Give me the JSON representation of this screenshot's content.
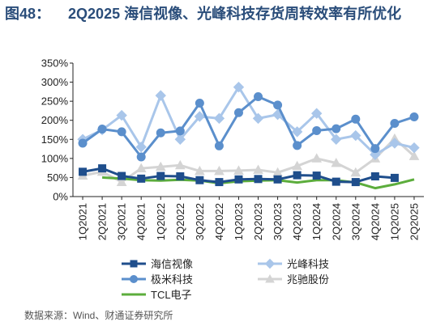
{
  "title": {
    "label": "图48：",
    "text": "2Q2025 海信视像、光峰科技存货周转效率有所优化"
  },
  "source": "数据来源：Wind、财通证券研究所",
  "chart_data": {
    "type": "line",
    "categories": [
      "1Q2021",
      "2Q2021",
      "3Q2021",
      "4Q2021",
      "1Q2022",
      "2Q2022",
      "3Q2022",
      "4Q2022",
      "1Q2023",
      "2Q2023",
      "3Q2023",
      "4Q2023",
      "1Q2024",
      "2Q2024",
      "3Q2024",
      "4Q2024",
      "1Q2025",
      "2Q2025"
    ],
    "ylim": [
      0,
      350
    ],
    "yticks": [
      "0%",
      "50%",
      "100%",
      "150%",
      "200%",
      "250%",
      "300%",
      "350%"
    ],
    "ytick_values": [
      0,
      50,
      100,
      150,
      200,
      250,
      300,
      350
    ],
    "grid": false,
    "legend_position": "bottom",
    "series": [
      {
        "name": "海信视像",
        "color": "#1f4e8c",
        "marker": "square",
        "values": [
          65,
          74,
          54,
          47,
          54,
          53,
          43,
          38,
          45,
          46,
          45,
          56,
          55,
          39,
          38,
          53,
          49,
          null
        ]
      },
      {
        "name": "光峰科技",
        "color": "#a9c6ea",
        "marker": "diamond",
        "values": [
          150,
          175,
          213,
          130,
          265,
          150,
          210,
          205,
          287,
          205,
          215,
          170,
          218,
          150,
          160,
          110,
          140,
          128
        ]
      },
      {
        "name": "极米科技",
        "color": "#5b8fcc",
        "marker": "circle",
        "values": [
          140,
          177,
          170,
          104,
          167,
          172,
          245,
          133,
          220,
          262,
          240,
          134,
          173,
          178,
          203,
          126,
          192,
          209
        ]
      },
      {
        "name": "兆驰股份",
        "color": "#d4d4d4",
        "marker": "triangle",
        "values": [
          55,
          65,
          38,
          74,
          78,
          82,
          67,
          67,
          68,
          70,
          63,
          80,
          100,
          88,
          63,
          100,
          152,
          106
        ]
      },
      {
        "name": "TCL电子",
        "color": "#5cad3c",
        "marker": "none",
        "values": [
          null,
          50,
          47,
          43,
          42,
          44,
          42,
          35,
          40,
          42,
          43,
          37,
          43,
          43,
          37,
          22,
          32,
          45
        ]
      }
    ]
  }
}
